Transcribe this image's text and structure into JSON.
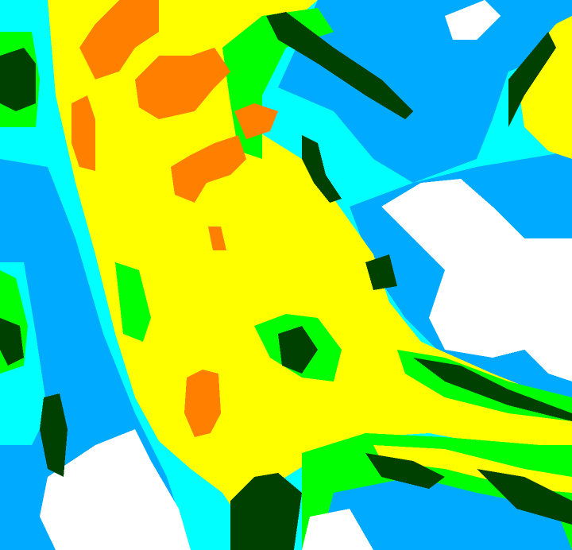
{
  "map": {
    "type": "classified raster",
    "palette": {
      "white": "#ffffff",
      "light_blue": "#00aaff",
      "cyan": "#00ffff",
      "green": "#00ff00",
      "dark_green": "#004000",
      "yellow": "#ffff00",
      "orange": "#ff8000"
    }
  }
}
